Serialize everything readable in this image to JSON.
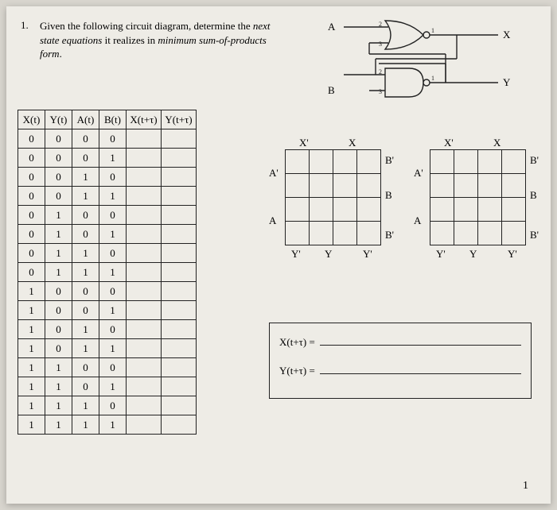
{
  "question": {
    "number": "1.",
    "text_pre": "Given the following circuit diagram, determine the ",
    "em1": "next state equations",
    "text_mid": " it realizes in ",
    "em2": "minimum sum-of-products form",
    "text_post": "."
  },
  "circuit": {
    "inputA": "A",
    "inputB": "B",
    "outputX": "X",
    "outputY": "Y",
    "pin1": "1",
    "pin2": "2",
    "pin3": "3"
  },
  "truth_table": {
    "headers": [
      "X(t)",
      "Y(t)",
      "A(t)",
      "B(t)",
      "X(t+τ)",
      "Y(t+τ)"
    ],
    "rows": [
      [
        "0",
        "0",
        "0",
        "0",
        "",
        ""
      ],
      [
        "0",
        "0",
        "0",
        "1",
        "",
        ""
      ],
      [
        "0",
        "0",
        "1",
        "0",
        "",
        ""
      ],
      [
        "0",
        "0",
        "1",
        "1",
        "",
        ""
      ],
      [
        "0",
        "1",
        "0",
        "0",
        "",
        ""
      ],
      [
        "0",
        "1",
        "0",
        "1",
        "",
        ""
      ],
      [
        "0",
        "1",
        "1",
        "0",
        "",
        ""
      ],
      [
        "0",
        "1",
        "1",
        "1",
        "",
        ""
      ],
      [
        "1",
        "0",
        "0",
        "0",
        "",
        ""
      ],
      [
        "1",
        "0",
        "0",
        "1",
        "",
        ""
      ],
      [
        "1",
        "0",
        "1",
        "0",
        "",
        ""
      ],
      [
        "1",
        "0",
        "1",
        "1",
        "",
        ""
      ],
      [
        "1",
        "1",
        "0",
        "0",
        "",
        ""
      ],
      [
        "1",
        "1",
        "0",
        "1",
        "",
        ""
      ],
      [
        "1",
        "1",
        "1",
        "0",
        "",
        ""
      ],
      [
        "1",
        "1",
        "1",
        "1",
        "",
        ""
      ]
    ]
  },
  "kmap_labels": {
    "top_left": "X'",
    "top_right": "X",
    "right_top": "B'",
    "right_mid_up": "B",
    "right_bot": "B'",
    "left_top": "A'",
    "left_bot": "A",
    "bot_l": "Y'",
    "bot_m": "Y",
    "bot_r": "Y'"
  },
  "answers": {
    "x_lhs": "X(t+τ) =",
    "y_lhs": "Y(t+τ) ="
  },
  "page_number": "1",
  "colors": {
    "page_bg": "#eeece6",
    "outer_bg": "#d8d5ce",
    "line": "#222"
  }
}
